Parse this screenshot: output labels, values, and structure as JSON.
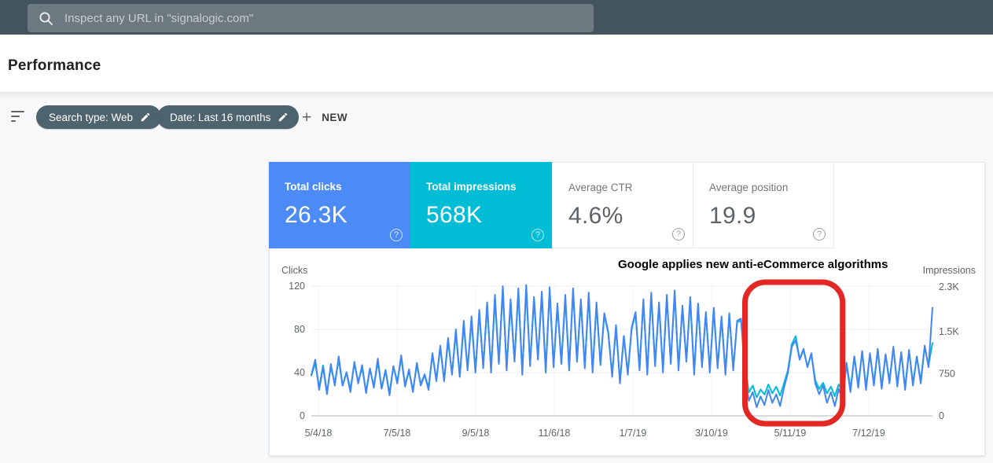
{
  "header": {
    "search_placeholder": "Inspect any URL in \"signalogic.com\""
  },
  "page": {
    "title": "Performance"
  },
  "filters": {
    "chips": [
      {
        "label": "Search type: Web"
      },
      {
        "label": "Date: Last 16 months"
      }
    ],
    "plus_glyph": "+",
    "new_button": "NEW"
  },
  "misc": {
    "help_glyph": "?"
  },
  "cards": [
    {
      "label": "Total clicks",
      "value": "26.3K",
      "color": "#4c8bf5",
      "selected": true
    },
    {
      "label": "Total impressions",
      "value": "568K",
      "color": "#00bcd4",
      "selected": true
    },
    {
      "label": "Average CTR",
      "value": "4.6%",
      "color": "#ffffff",
      "selected": false
    },
    {
      "label": "Average position",
      "value": "19.9",
      "color": "#ffffff",
      "selected": false
    }
  ],
  "chart_data": {
    "type": "line",
    "title_annotation": "Google applies new anti-eCommerce algorithms",
    "left_axis": {
      "label": "Clicks",
      "tick_values": [
        0,
        40,
        80,
        120
      ],
      "tick_labels": [
        "0",
        "40",
        "80",
        "120"
      ],
      "ylim": [
        0,
        120
      ]
    },
    "right_axis": {
      "label": "Impressions",
      "tick_values": [
        0,
        750,
        1500,
        2300
      ],
      "tick_labels": [
        "0",
        "750",
        "1.5K",
        "2.3K"
      ],
      "ylim": [
        0,
        2300
      ]
    },
    "x_tick_labels": [
      "5/4/18",
      "7/5/18",
      "9/5/18",
      "11/6/18",
      "1/7/19",
      "3/10/19",
      "5/11/19",
      "7/12/19"
    ],
    "grid": true,
    "legend_position": "none",
    "highlight_box": {
      "color": "#e22724",
      "start_index": 111,
      "end_index": 136,
      "around_x_label": "5/11/19"
    },
    "series": [
      {
        "name": "Clicks",
        "axis": "left",
        "color": "#4285f4",
        "values": [
          38,
          52,
          24,
          45,
          20,
          48,
          28,
          55,
          28,
          40,
          22,
          50,
          30,
          47,
          21,
          44,
          26,
          53,
          25,
          42,
          19,
          46,
          30,
          56,
          27,
          43,
          22,
          49,
          28,
          38,
          24,
          58,
          32,
          65,
          32,
          72,
          38,
          80,
          36,
          88,
          42,
          92,
          40,
          98,
          44,
          105,
          40,
          112,
          48,
          120,
          42,
          108,
          50,
          118,
          38,
          121,
          46,
          110,
          52,
          115,
          40,
          119,
          45,
          104,
          48,
          112,
          42,
          118,
          50,
          108,
          44,
          114,
          40,
          105,
          47,
          95,
          78,
          36,
          84,
          30,
          74,
          38,
          82,
          96,
          42,
          108,
          38,
          114,
          46,
          105,
          40,
          112,
          48,
          116,
          42,
          102,
          50,
          110,
          38,
          104,
          45,
          96,
          40,
          100,
          44,
          92,
          38,
          95,
          42,
          88,
          90,
          38,
          14,
          22,
          8,
          18,
          10,
          24,
          12,
          20,
          9,
          26,
          40,
          64,
          70,
          52,
          62,
          45,
          58,
          30,
          20,
          28,
          12,
          22,
          9,
          25,
          14,
          48,
          22,
          55,
          26,
          60,
          24,
          58,
          28,
          62,
          25,
          57,
          30,
          64,
          27,
          59,
          24,
          61,
          28,
          55,
          30,
          65,
          45,
          100
        ]
      },
      {
        "name": "Impressions",
        "axis": "right",
        "color": "#00bcd4",
        "values": [
          720,
          940,
          500,
          900,
          420,
          870,
          580,
          1000,
          540,
          780,
          470,
          930,
          610,
          850,
          430,
          840,
          530,
          960,
          490,
          820,
          400,
          880,
          620,
          1020,
          560,
          790,
          460,
          900,
          570,
          740,
          500,
          1100,
          650,
          1220,
          640,
          1330,
          760,
          1480,
          700,
          1620,
          840,
          1700,
          790,
          1850,
          880,
          1960,
          820,
          2080,
          940,
          2250,
          860,
          2000,
          990,
          2200,
          780,
          2280,
          920,
          2060,
          1030,
          2150,
          820,
          2230,
          900,
          1950,
          950,
          2090,
          860,
          2210,
          1000,
          2020,
          880,
          2130,
          820,
          1960,
          930,
          1800,
          1480,
          740,
          1580,
          630,
          1400,
          770,
          1550,
          1820,
          860,
          2030,
          790,
          2140,
          930,
          1980,
          830,
          2100,
          960,
          2180,
          870,
          1930,
          1000,
          2070,
          790,
          1960,
          910,
          1820,
          830,
          1890,
          900,
          1740,
          790,
          1800,
          860,
          1670,
          1700,
          900,
          420,
          540,
          330,
          470,
          380,
          560,
          400,
          520,
          360,
          580,
          820,
          1280,
          1420,
          1000,
          1180,
          880,
          1100,
          640,
          480,
          590,
          400,
          520,
          350,
          560,
          430,
          950,
          470,
          1060,
          550,
          1140,
          500,
          1100,
          580,
          1180,
          520,
          1090,
          620,
          1210,
          560,
          1120,
          500,
          1160,
          580,
          1050,
          620,
          1230,
          900,
          1300
        ]
      }
    ]
  }
}
